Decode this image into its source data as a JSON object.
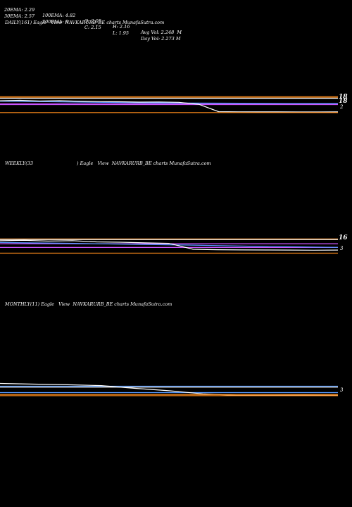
{
  "header": {
    "row1": [
      "20EMA: 2.29",
      "100EMA: 4.82",
      "O: 2.05",
      "H: 2.16",
      "Avg Vol: 2.248  M"
    ],
    "row2": [
      "30EMA: 2.57",
      "200EMA: 0",
      "C: 2.15",
      "L: 1.95",
      "Day Vol: 2.273 M"
    ]
  },
  "panels": [
    {
      "title": "DAILY(161) Eagle   View  NAVKARURB_BE charts MunafaSutra.com",
      "labels": [
        "18",
        "18",
        "2"
      ]
    },
    {
      "title": "WEEKLY(33                              ) Eagle   View  NAVKARURB_BE charts MunafaSutra.com",
      "labels": [
        "16",
        "3"
      ]
    },
    {
      "title": "MONTHLY(11) Eagle   View  NAVKARURB_BE charts MunafaSutra.com",
      "labels": [
        "3"
      ]
    }
  ],
  "chart_data": [
    {
      "type": "line",
      "ylim": [
        0,
        32
      ],
      "grid": false,
      "series": [
        {
          "color": "#ff8c1a",
          "values": [
            18.2,
            18.2
          ]
        },
        {
          "color": "#ff8c1a",
          "values": [
            17.0,
            17.0
          ]
        },
        {
          "color": "#ffffff",
          "values": [
            16.4,
            16.4
          ]
        },
        {
          "color": "#cc55ff",
          "values": [
            10.2,
            10.2
          ]
        },
        {
          "color": "#cc55ff",
          "values": [
            9.2,
            9.2
          ]
        },
        {
          "color": "#5599ff",
          "values": [
            13.0,
            12.5,
            11.8,
            11.2,
            10.9,
            10.7,
            10.6,
            10.5
          ]
        },
        {
          "color": "#ffffff",
          "values": [
            13.5,
            14.0,
            13.2,
            13.6,
            12.9,
            12.6,
            12.4,
            12.0,
            12.2,
            11.8,
            9.5,
            1.1,
            1.0,
            0.9,
            0.9,
            0.8,
            0.8,
            0.9
          ]
        },
        {
          "color": "#ff8c1a",
          "values": [
            0.1,
            0.1
          ]
        }
      ]
    },
    {
      "type": "line",
      "ylim": [
        0,
        32
      ],
      "grid": false,
      "series": [
        {
          "color": "#ff8c1a",
          "values": [
            16.6,
            16.6
          ]
        },
        {
          "color": "#ffffff",
          "values": [
            15.9,
            15.9
          ]
        },
        {
          "color": "#cc55ff",
          "values": [
            11.1,
            11.1
          ]
        },
        {
          "color": "#cc55ff",
          "values": [
            6.9,
            6.9
          ]
        },
        {
          "color": "#5599ff",
          "values": [
            12.5,
            12.0,
            11.5,
            10.8,
            10.2,
            9.6,
            8.8,
            8.0,
            7.5,
            7.0
          ]
        },
        {
          "color": "#ffffff",
          "values": [
            14.5,
            15.0,
            14.2,
            14.6,
            13.2,
            12.8,
            12.1,
            11.5,
            4.8,
            4.3,
            4.1,
            4.0,
            3.9,
            3.8,
            3.9
          ]
        },
        {
          "color": "#ff8c1a",
          "values": [
            0.4,
            0.4
          ]
        }
      ]
    },
    {
      "type": "line",
      "ylim": [
        0,
        32
      ],
      "grid": false,
      "series": [
        {
          "color": "#5599ff",
          "values": [
            10.8,
            10.8
          ]
        },
        {
          "color": "#ffffff",
          "values": [
            9.8,
            9.8
          ]
        },
        {
          "color": "#5599ff",
          "values": [
            3.6,
            3.6
          ]
        },
        {
          "color": "#ffffff",
          "values": [
            14.0,
            13.2,
            12.5,
            11.5,
            8.4,
            5.7,
            2.2,
            0.4,
            0.6,
            0.7,
            0.5
          ]
        },
        {
          "color": "#ff8c1a",
          "values": [
            1.4,
            1.4
          ]
        },
        {
          "color": "#ff8c1a",
          "values": [
            0.1,
            0.1
          ]
        }
      ]
    }
  ]
}
